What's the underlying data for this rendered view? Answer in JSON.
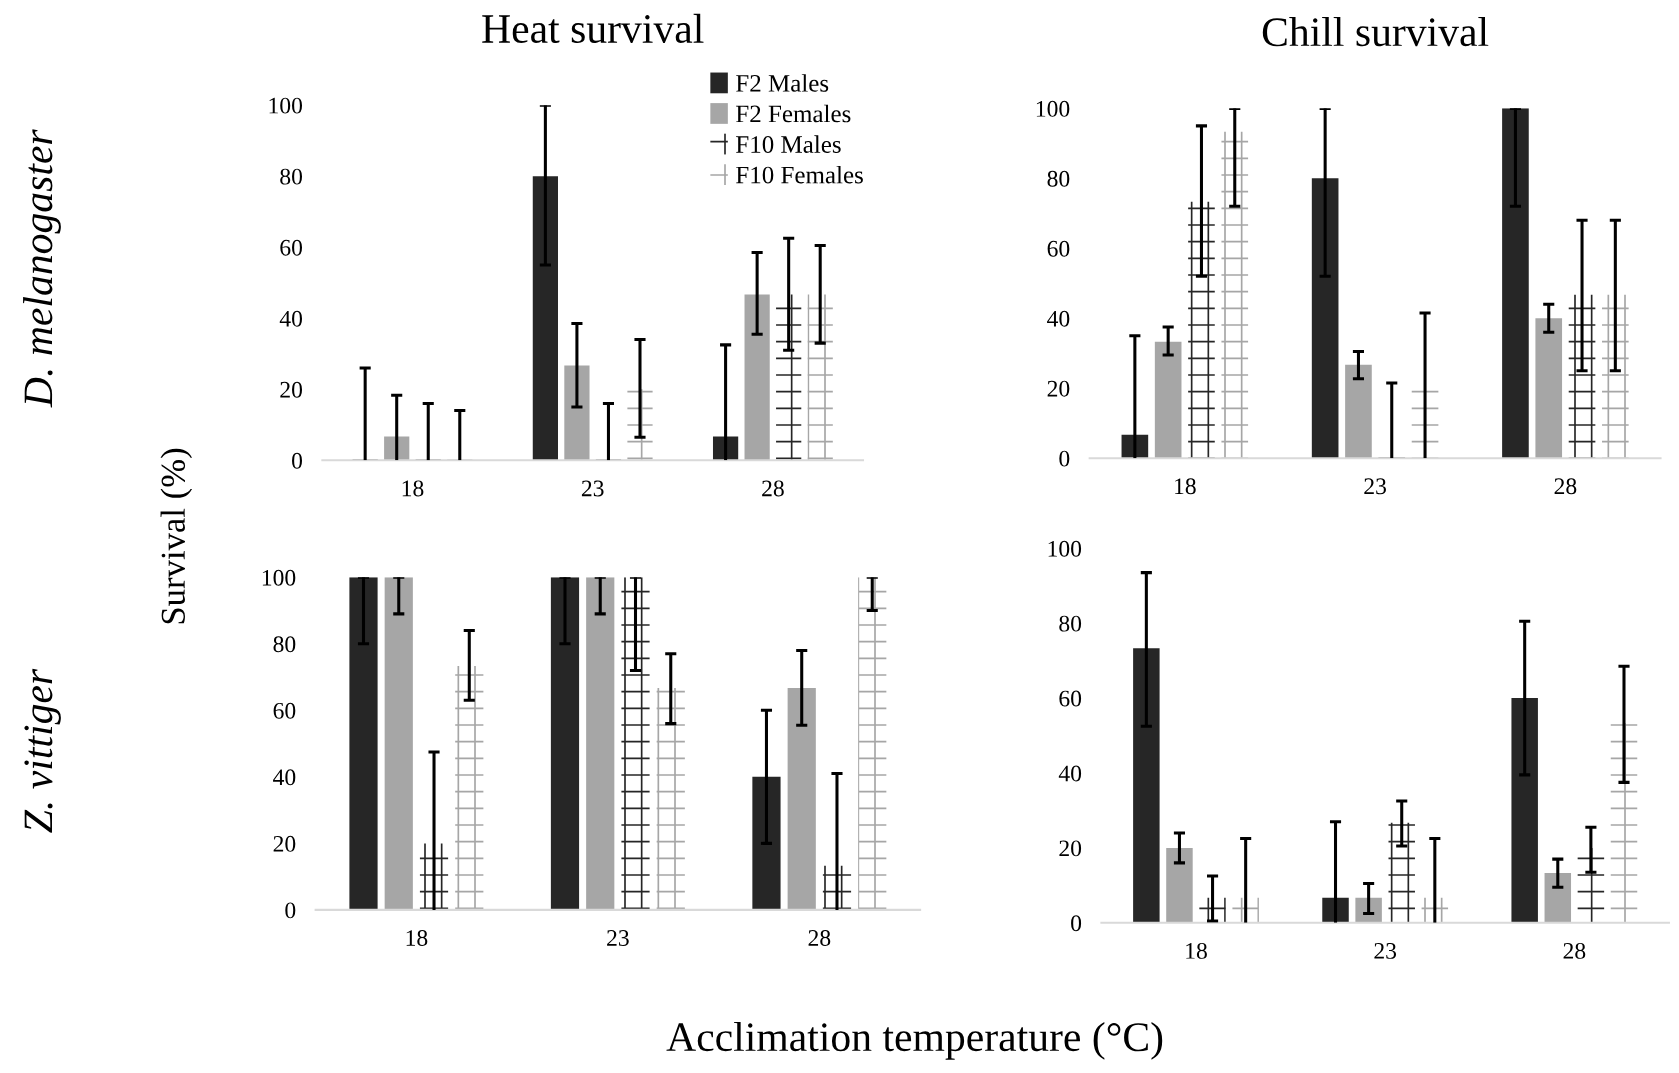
{
  "chart_data": [
    {
      "type": "bar",
      "title": "Heat survival",
      "categories": [
        "18",
        "23",
        "28"
      ],
      "ylim": [
        0,
        100
      ],
      "yticks": [
        0,
        20,
        40,
        60,
        80,
        100
      ],
      "legend": "top right",
      "ylabel": "Survival (%)",
      "annotations": [
        "D. melanogaster"
      ],
      "series": [
        {
          "name": "F2 Males",
          "color": "#262626",
          "values": [
            0,
            80,
            6.7
          ],
          "errors": [
            [
              0,
              26
            ],
            [
              55,
              100
            ],
            [
              0,
              32.5
            ]
          ]
        },
        {
          "name": "F2 Females",
          "color": "#a6a6a6",
          "values": [
            6.7,
            26.7,
            46.7
          ],
          "errors": [
            [
              0,
              18.3
            ],
            [
              15,
              38.5
            ],
            [
              35.5,
              58.5
            ]
          ]
        },
        {
          "name": "F10 Males",
          "color": "#262626",
          "values": [
            0,
            0,
            46.7
          ],
          "errors": [
            [
              0,
              16
            ],
            [
              0,
              16
            ],
            [
              31,
              62.5
            ]
          ]
        },
        {
          "name": "F10 Females",
          "color": "#a6a6a6",
          "values": [
            0,
            20,
            46.7
          ],
          "errors": [
            [
              0,
              14
            ],
            [
              6.5,
              34
            ],
            [
              33,
              60.5
            ]
          ]
        }
      ]
    },
    {
      "type": "bar",
      "title": "Chill survival",
      "categories": [
        "18",
        "23",
        "28"
      ],
      "ylim": [
        0,
        100
      ],
      "yticks": [
        0,
        20,
        40,
        60,
        80,
        100
      ],
      "series": [
        {
          "color": "#262626",
          "values": [
            6.7,
            80,
            100
          ],
          "errors": [
            [
              0,
              35
            ],
            [
              52,
              100
            ],
            [
              72,
              100
            ]
          ]
        },
        {
          "color": "#a6a6a6",
          "values": [
            33.3,
            26.7,
            40
          ],
          "errors": [
            [
              29.5,
              37.5
            ],
            [
              22.7,
              30.5
            ],
            [
              36,
              44
            ]
          ]
        },
        {
          "color": "#262626",
          "values": [
            73.3,
            0,
            46.7
          ],
          "errors": [
            [
              52,
              95
            ],
            [
              0,
              21.5
            ],
            [
              25,
              68
            ]
          ]
        },
        {
          "color": "#a6a6a6",
          "values": [
            93.3,
            20,
            46.7
          ],
          "errors": [
            [
              72,
              100
            ],
            [
              0,
              41.5
            ],
            [
              25,
              68
            ]
          ]
        }
      ]
    },
    {
      "type": "bar",
      "categories": [
        "18",
        "23",
        "28"
      ],
      "ylim": [
        0,
        100
      ],
      "yticks": [
        0,
        20,
        40,
        60,
        80,
        100
      ],
      "xlabel": "Acclimation temperature (°C)",
      "annotations": [
        "Z. vittiger"
      ],
      "series": [
        {
          "color": "#262626",
          "values": [
            100,
            100,
            40
          ],
          "errors": [
            [
              80,
              100
            ],
            [
              80,
              100
            ],
            [
              20,
              60
            ]
          ]
        },
        {
          "color": "#a6a6a6",
          "values": [
            100,
            100,
            66.7
          ],
          "errors": [
            [
              89,
              100
            ],
            [
              89,
              100
            ],
            [
              55.5,
              78
            ]
          ]
        },
        {
          "color": "#262626",
          "values": [
            20,
            100,
            13.3
          ],
          "errors": [
            [
              0,
              47.5
            ],
            [
              72,
              100
            ],
            [
              0,
              41
            ]
          ]
        },
        {
          "color": "#a6a6a6",
          "values": [
            73.3,
            66.7,
            100
          ],
          "errors": [
            [
              63,
              84
            ],
            [
              56,
              77
            ],
            [
              90,
              100
            ]
          ]
        }
      ]
    },
    {
      "type": "bar",
      "categories": [
        "18",
        "23",
        "28"
      ],
      "ylim": [
        0,
        100
      ],
      "yticks": [
        0,
        20,
        40,
        60,
        80,
        100
      ],
      "series": [
        {
          "color": "#262626",
          "values": [
            73.3,
            6.7,
            60
          ],
          "errors": [
            [
              52.5,
              93.5
            ],
            [
              0,
              27
            ],
            [
              39.5,
              80.5
            ]
          ]
        },
        {
          "color": "#a6a6a6",
          "values": [
            20,
            6.7,
            13.3
          ],
          "errors": [
            [
              16,
              24
            ],
            [
              2.5,
              10.5
            ],
            [
              9.5,
              17
            ]
          ]
        },
        {
          "color": "#262626",
          "values": [
            6.7,
            26.7,
            20
          ],
          "errors": [
            [
              0.5,
              12.5
            ],
            [
              20.5,
              32.5
            ],
            [
              13.5,
              25.5
            ]
          ]
        },
        {
          "color": "#a6a6a6",
          "values": [
            6.7,
            6.7,
            53.3
          ],
          "errors": [
            [
              0,
              22.5
            ],
            [
              0,
              22.5
            ],
            [
              37.5,
              68.5
            ]
          ]
        }
      ]
    }
  ]
}
